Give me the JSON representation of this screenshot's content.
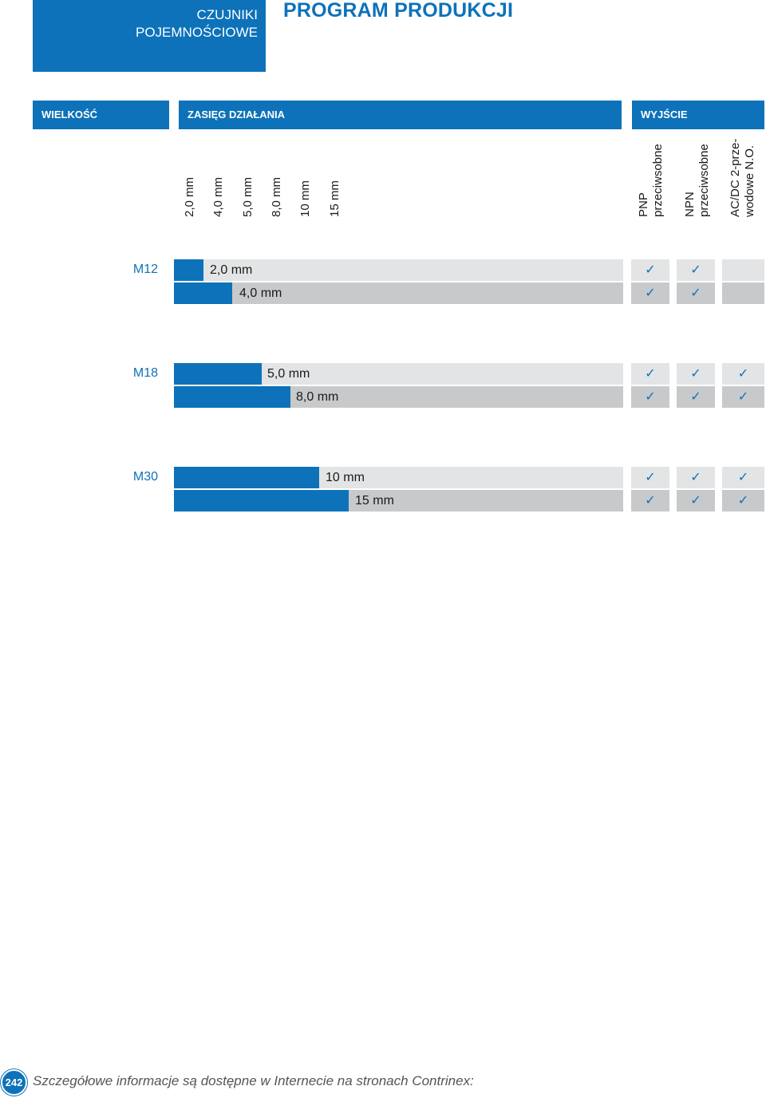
{
  "header": {
    "category_line1": "CZUJNIKI",
    "category_line2": "POJEMNOŚCIOWE",
    "title": "PROGRAM PRODUKCJI"
  },
  "table_headers": {
    "size": "WIELKOŚĆ",
    "range": "ZASIĘG DZIAŁANIA",
    "output": "WYJŚCIE"
  },
  "range_columns": [
    "2,0 mm",
    "4,0 mm",
    "5,0 mm",
    "8,0 mm",
    "10 mm",
    "15 mm"
  ],
  "output_columns": [
    {
      "line1": "PNP",
      "line2": "przeciwsobne"
    },
    {
      "line1": "NPN",
      "line2": "przeciwsobne"
    },
    {
      "line1": "AC/DC 2-prze-",
      "line2": "wodowe N.O."
    }
  ],
  "check_symbol": "✓",
  "groups": [
    {
      "size": "M12",
      "rows": [
        {
          "range": "2,0 mm",
          "pnp": true,
          "npn": true,
          "acdc": false
        },
        {
          "range": "4,0 mm",
          "pnp": true,
          "npn": true,
          "acdc": false
        }
      ]
    },
    {
      "size": "M18",
      "rows": [
        {
          "range": "5,0 mm",
          "pnp": true,
          "npn": true,
          "acdc": true
        },
        {
          "range": "8,0 mm",
          "pnp": true,
          "npn": true,
          "acdc": true
        }
      ]
    },
    {
      "size": "M30",
      "rows": [
        {
          "range": "10 mm",
          "pnp": true,
          "npn": true,
          "acdc": true
        },
        {
          "range": "15 mm",
          "pnp": true,
          "npn": true,
          "acdc": true
        }
      ]
    }
  ],
  "footer": {
    "page_number": "242",
    "text": "Szczegółowe informacje są dostępne w Internecie na stronach Contrinex:"
  },
  "colors": {
    "brand_blue": "#0d72b9",
    "row_light": "#e3e4e5",
    "row_dark": "#c8c9cb"
  }
}
